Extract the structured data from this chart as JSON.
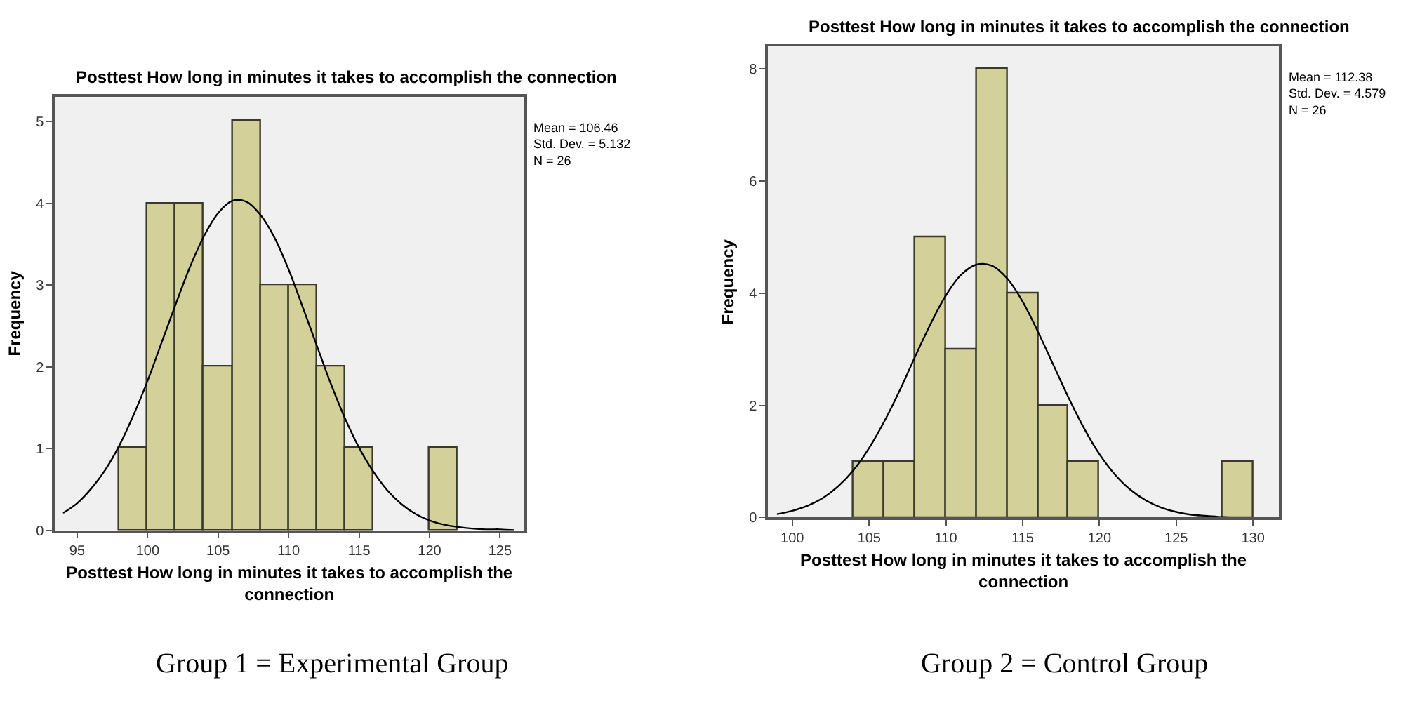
{
  "chart_data": [
    {
      "type": "histogram",
      "title": "Posttest How long in minutes it takes to accomplish the connection",
      "xlabel": "Posttest How long in minutes it takes to accomplish the connection",
      "ylabel": "Frequency",
      "bins": [
        98,
        100,
        102,
        104,
        106,
        108,
        110,
        112,
        114,
        116,
        118,
        120,
        122
      ],
      "values": [
        1,
        4,
        4,
        2,
        5,
        3,
        3,
        2,
        1,
        0,
        0,
        1
      ],
      "color": "#d4d09a",
      "series": [
        {
          "type": "line",
          "color": "#000000",
          "x": [
            94,
            95,
            96,
            97,
            98,
            99,
            100,
            101,
            102,
            103,
            104,
            105,
            106,
            107,
            108,
            109,
            110,
            111,
            112,
            113,
            114,
            115,
            116,
            117,
            118,
            119,
            120,
            121,
            122,
            123,
            124,
            125,
            126
          ],
          "values": [
            0.21,
            0.33,
            0.51,
            0.74,
            1.04,
            1.41,
            1.83,
            2.3,
            2.77,
            3.22,
            3.6,
            3.88,
            4.03,
            4.02,
            3.86,
            3.58,
            3.19,
            2.73,
            2.26,
            1.79,
            1.37,
            1.01,
            0.72,
            0.49,
            0.32,
            0.2,
            0.12,
            0.07,
            0.04,
            0.02,
            0.01,
            0.01,
            0.0
          ]
        }
      ],
      "xlim": [
        93.4,
        126.7
      ],
      "ylim": [
        0,
        5.3
      ],
      "xticks": [
        95,
        100,
        105,
        110,
        115,
        120,
        125
      ],
      "yticks": [
        0,
        1,
        2,
        3,
        4,
        5
      ],
      "annotations": [
        "Mean = 106.46\nStd. Dev. = 5.132\nN = 26",
        "Group 1 = Experimental Group"
      ]
    },
    {
      "type": "histogram",
      "title": "Posttest How long in minutes it takes to accomplish the connection",
      "xlabel": "Posttest How long in minutes it takes to accomplish the connection",
      "ylabel": "Frequency",
      "bins": [
        104,
        106,
        108,
        110,
        112,
        114,
        116,
        118,
        120,
        122,
        124,
        126,
        128,
        130
      ],
      "values": [
        1,
        1,
        5,
        3,
        8,
        4,
        2,
        1,
        0,
        0,
        0,
        0,
        1
      ],
      "color": "#d4d09a",
      "series": [
        {
          "type": "line",
          "color": "#000000",
          "x": [
            99,
            100,
            101,
            102,
            103,
            104,
            105,
            106,
            107,
            108,
            109,
            110,
            111,
            112,
            113,
            114,
            115,
            116,
            117,
            118,
            119,
            120,
            121,
            122,
            123,
            124,
            125,
            126,
            127,
            128,
            129,
            130,
            131
          ],
          "values": [
            0.06,
            0.12,
            0.21,
            0.35,
            0.56,
            0.85,
            1.24,
            1.72,
            2.27,
            2.87,
            3.45,
            3.96,
            4.33,
            4.51,
            4.49,
            4.26,
            3.85,
            3.31,
            2.72,
            2.13,
            1.59,
            1.13,
            0.77,
            0.5,
            0.31,
            0.18,
            0.1,
            0.05,
            0.03,
            0.01,
            0.0,
            0.0,
            0.0
          ]
        }
      ],
      "xlim": [
        98.4,
        131.7
      ],
      "ylim": [
        0,
        8.4
      ],
      "xticks": [
        100,
        105,
        110,
        115,
        120,
        125,
        130
      ],
      "yticks": [
        0,
        2,
        4,
        6,
        8
      ],
      "annotations": [
        "Mean = 112.38\nStd. Dev. = 4.579\nN = 26",
        "Group 2 = Control Group"
      ]
    }
  ]
}
